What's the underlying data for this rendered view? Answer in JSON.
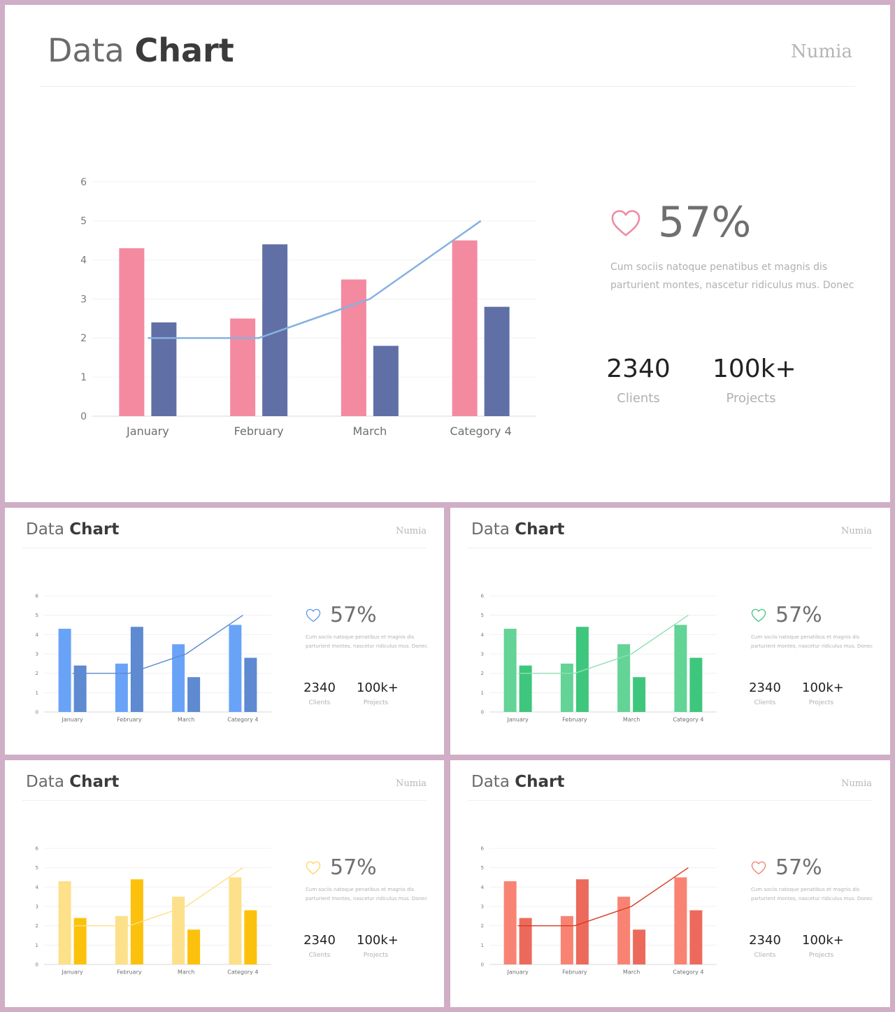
{
  "chart_data": [
    {
      "type": "bar",
      "categories": [
        "January",
        "February",
        "March",
        "Category 4"
      ],
      "series": [
        {
          "values": [
            4.3,
            2.5,
            3.5,
            4.5
          ]
        },
        {
          "values": [
            2.4,
            4.4,
            1.8,
            2.8
          ]
        }
      ],
      "line": [
        2,
        2,
        3,
        5
      ],
      "yticks": [
        "0",
        "1",
        "2",
        "3",
        "4",
        "5",
        "6"
      ],
      "ylim": [
        0,
        6
      ],
      "grid": true
    }
  ],
  "slides": [
    {
      "title_light": "Data",
      "title_bold": "Chart",
      "brand": "Numia",
      "percent": "57%",
      "description": "Cum sociis natoque penatibus et magnis dis parturient montes, nascetur ridiculus mus. Donec",
      "stats": [
        {
          "value": "2340",
          "label": "Clients"
        },
        {
          "value": "100k+",
          "label": "Projects"
        }
      ],
      "colors": {
        "bar1": "#f38aa0",
        "bar2": "#6070a6",
        "line": "#86b1e0",
        "heart": "#ef8aa1"
      }
    },
    {
      "title_light": "Data",
      "title_bold": "Chart",
      "brand": "Numia",
      "percent": "57%",
      "description": "Cum sociis natoque penatibus et magnis dis parturient montes, nascetur ridiculus mus. Donec",
      "stats": [
        {
          "value": "2340",
          "label": "Clients"
        },
        {
          "value": "100k+",
          "label": "Projects"
        }
      ],
      "colors": {
        "bar1": "#69a3f8",
        "bar2": "#5d8ad0",
        "line": "#5d8ad0",
        "heart": "#5d95e8"
      }
    },
    {
      "title_light": "Data",
      "title_bold": "Chart",
      "brand": "Numia",
      "percent": "57%",
      "description": "Cum sociis natoque penatibus et magnis dis parturient montes, nascetur ridiculus mus. Donec",
      "stats": [
        {
          "value": "2340",
          "label": "Clients"
        },
        {
          "value": "100k+",
          "label": "Projects"
        }
      ],
      "colors": {
        "bar1": "#63d396",
        "bar2": "#3fc67d",
        "line": "#8fe0b5",
        "heart": "#3fc67d"
      }
    },
    {
      "title_light": "Data",
      "title_bold": "Chart",
      "brand": "Numia",
      "percent": "57%",
      "description": "Cum sociis natoque penatibus et magnis dis parturient montes, nascetur ridiculus mus. Donec",
      "stats": [
        {
          "value": "2340",
          "label": "Clients"
        },
        {
          "value": "100k+",
          "label": "Projects"
        }
      ],
      "colors": {
        "bar1": "#fde08a",
        "bar2": "#fcc10c",
        "line": "#fde08a",
        "heart": "#fcd45a"
      }
    },
    {
      "title_light": "Data",
      "title_bold": "Chart",
      "brand": "Numia",
      "percent": "57%",
      "description": "Cum sociis natoque penatibus et magnis dis parturient montes, nascetur ridiculus mus. Donec",
      "stats": [
        {
          "value": "2340",
          "label": "Clients"
        },
        {
          "value": "100k+",
          "label": "Projects"
        }
      ],
      "colors": {
        "bar1": "#f98373",
        "bar2": "#ec6a5c",
        "line": "#d83a22",
        "heart": "#f07b6b"
      }
    }
  ]
}
